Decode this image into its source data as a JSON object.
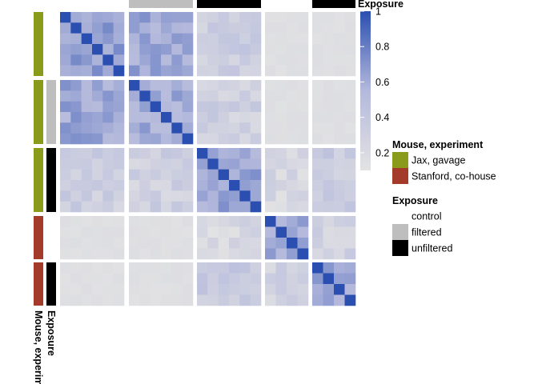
{
  "chart_data": {
    "type": "heatmap",
    "colorbar": {
      "title": "Exposure",
      "ticks": [
        1,
        0.8,
        0.6,
        0.4,
        0.2
      ],
      "range": [
        0.1,
        1
      ],
      "low_color": "#e3e3e3",
      "mid_color": "#b4b9dc",
      "high_color": "#2b4fb0"
    },
    "top_annotation": [
      "control",
      "filtered",
      "unfiltered",
      "control",
      "unfiltered"
    ],
    "row_annotation_labels": [
      "Mouse, experiment",
      "Exposure"
    ],
    "groups": [
      {
        "mouse": "Jax, gavage",
        "exposure": "control",
        "size": 6
      },
      {
        "mouse": "Jax, gavage",
        "exposure": "filtered",
        "size": 6
      },
      {
        "mouse": "Jax, gavage",
        "exposure": "unfiltered",
        "size": 6
      },
      {
        "mouse": "Stanford, co-house",
        "exposure": "control",
        "size": 4
      },
      {
        "mouse": "Stanford, co-house",
        "exposure": "unfiltered",
        "size": 4
      }
    ],
    "block_means": [
      [
        0.68,
        0.62,
        0.32,
        0.14,
        0.14
      ],
      [
        0.62,
        0.6,
        0.3,
        0.14,
        0.14
      ],
      [
        0.32,
        0.3,
        0.62,
        0.22,
        0.36
      ],
      [
        0.14,
        0.14,
        0.22,
        0.6,
        0.28
      ],
      [
        0.14,
        0.14,
        0.36,
        0.28,
        0.62
      ]
    ],
    "diagonal_value": 1,
    "legends": [
      {
        "title": "Mouse, experiment",
        "items": [
          {
            "label": "Jax, gavage",
            "color": "#8a9a1b"
          },
          {
            "label": "Stanford, co-house",
            "color": "#a33a2a"
          }
        ]
      },
      {
        "title": "Exposure",
        "items": [
          {
            "label": "control",
            "color": "#ffffff"
          },
          {
            "label": "filtered",
            "color": "#bebebe"
          },
          {
            "label": "unfiltered",
            "color": "#000000"
          }
        ]
      }
    ]
  }
}
